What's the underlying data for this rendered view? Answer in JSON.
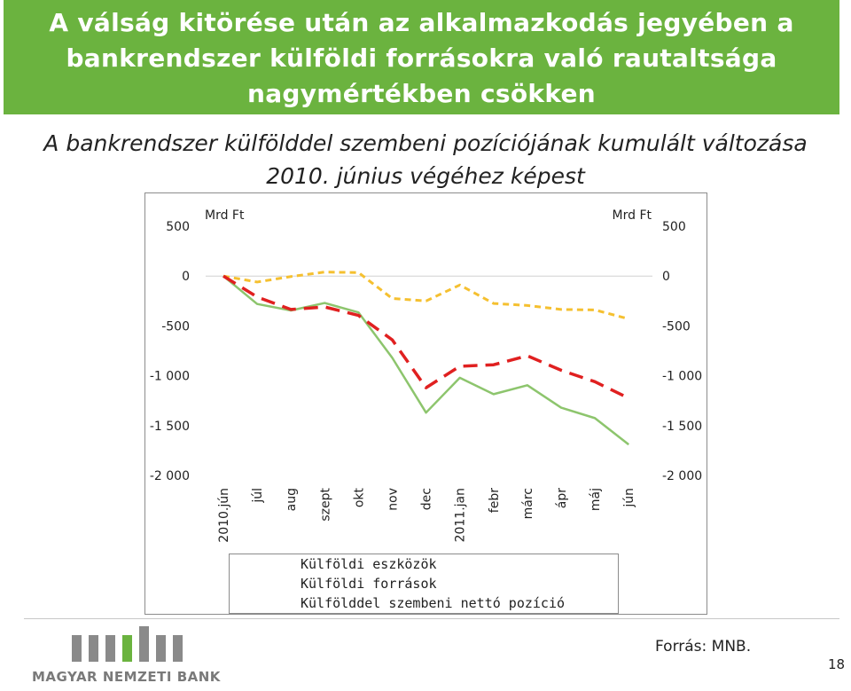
{
  "header": {
    "title_line1": "A válság kitörése után az  alkalmazkodás jegyében a",
    "title_line2": "bankrendszer külföldi forrásokra való rautaltsága",
    "title_line3": "nagymértékben csökken",
    "subtitle_line1": "A bankrendszer külfölddel szembeni pozíciójának kumulált változása",
    "subtitle_line2": "2010. június végéhez képest"
  },
  "chart_data": {
    "type": "line",
    "left_axis_unit": "Mrd Ft",
    "right_axis_unit": "Mrd Ft",
    "ylim": [
      -2000,
      500
    ],
    "y_ticks": [
      500,
      0,
      -500,
      -1000,
      -1500,
      -2000
    ],
    "y_tick_labels": [
      "500",
      "0",
      "-500",
      "-1 000",
      "-1 500",
      "-2 000"
    ],
    "categories": [
      "2010.jún",
      "júl",
      "aug",
      "szept",
      "okt",
      "nov",
      "dec",
      "2011.jan",
      "febr",
      "márc",
      "ápr",
      "máj",
      "jún"
    ],
    "series": [
      {
        "name": "Külföldi eszközök",
        "color": "#f5c030",
        "dash": "short-dash",
        "values": [
          0,
          -60,
          -5,
          40,
          35,
          -225,
          -250,
          -90,
          -275,
          -295,
          -335,
          -340,
          -430
        ]
      },
      {
        "name": "Külföldi források",
        "color": "#8dc56d",
        "dash": "solid",
        "values": [
          0,
          -280,
          -345,
          -270,
          -365,
          -820,
          -1370,
          -1020,
          -1185,
          -1095,
          -1320,
          -1425,
          -1690
        ]
      },
      {
        "name": "Külfölddel szembeni nettó pozíció",
        "color": "#e02020",
        "dash": "long-dash",
        "values": [
          0,
          -210,
          -335,
          -310,
          -395,
          -640,
          -1120,
          -905,
          -890,
          -800,
          -945,
          -1060,
          -1225
        ]
      }
    ],
    "legend_position": "bottom",
    "grid": false
  },
  "footer": {
    "logo_text": "MAGYAR NEMZETI BANK",
    "source": "Forrás: MNB.",
    "page_number": "18"
  }
}
